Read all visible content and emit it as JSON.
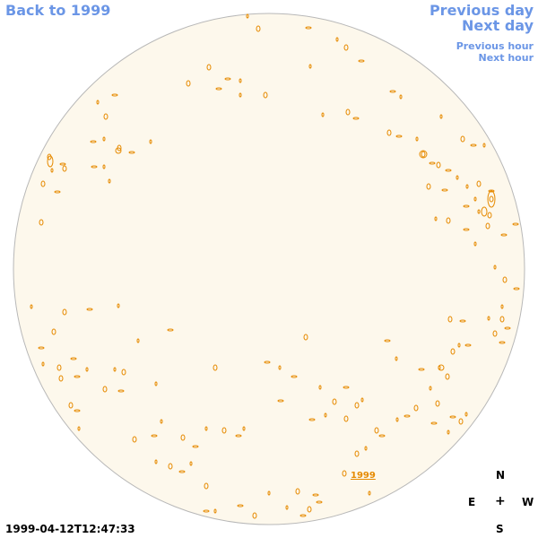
{
  "nav": {
    "back": "Back to 1999",
    "previous_day": "Previous day",
    "next_day": "Next day",
    "previous_hour": "Previous hour",
    "next_hour": "Next hour"
  },
  "map": {
    "year_link": "1999",
    "disk_fill": "#fdf8ec",
    "disk_stroke": "#b8b8b8",
    "contour_color": "#e68a00",
    "link_color": "#6b96e6"
  },
  "compass": {
    "north": "N",
    "east": "E",
    "center": "+",
    "west": "W",
    "south": "S"
  },
  "timestamp": "1999-04-12T12:47:33"
}
